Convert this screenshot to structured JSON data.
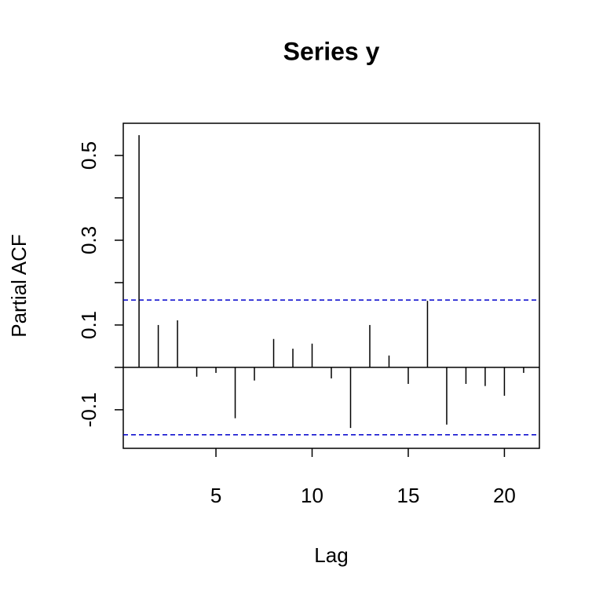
{
  "chart_data": {
    "type": "stem",
    "title": "Series  y",
    "x_label": "Lag",
    "y_label": "Partial ACF",
    "x": [
      1,
      2,
      3,
      4,
      5,
      6,
      7,
      8,
      9,
      10,
      11,
      12,
      13,
      14,
      15,
      16,
      17,
      18,
      19,
      20,
      21
    ],
    "values": [
      0.548,
      0.1,
      0.111,
      -0.022,
      -0.013,
      -0.12,
      -0.031,
      0.067,
      0.044,
      0.056,
      -0.026,
      -0.143,
      0.1,
      0.028,
      -0.039,
      0.157,
      -0.135,
      -0.039,
      -0.044,
      -0.067,
      -0.013
    ],
    "color": "#000000",
    "xlim": [
      0.18,
      21.82
    ],
    "xticks": [
      5,
      10,
      15,
      20
    ],
    "ylim": [
      -0.191,
      0.576
    ],
    "yticks": [
      -0.1,
      0.1,
      0.3,
      0.5
    ],
    "yticks_unlabeled": [
      0,
      0.2,
      0.4
    ],
    "ci_lines": [
      0.159,
      -0.159
    ],
    "ci_color": "#0000cc"
  }
}
